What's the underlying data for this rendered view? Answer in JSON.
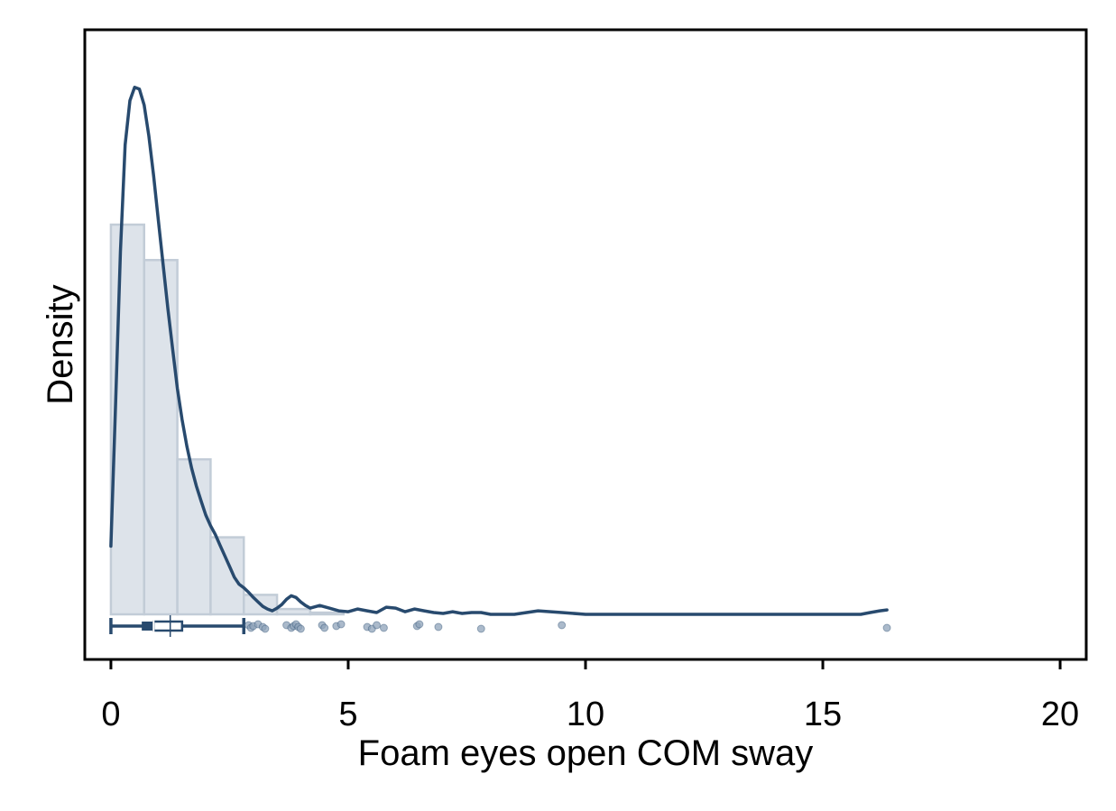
{
  "chart_data": {
    "type": "histogram",
    "title": "",
    "xlabel": "Foam eyes open COM sway",
    "ylabel": "Density",
    "xlim": [
      -0.55,
      20.55
    ],
    "x_ticks": [
      "0",
      "5",
      "10",
      "15",
      "20"
    ],
    "x_tick_values": [
      0,
      5,
      10,
      15,
      20
    ],
    "ylim": [
      0,
      0.66
    ],
    "show_y_tick_labels": false,
    "grid": false,
    "legend": "none",
    "colors": {
      "bar_fill": "#dde3ea",
      "bar_stroke": "#c2ccd7",
      "line": "#284a6e",
      "points": "#8fa3ba",
      "frame": "#000000"
    },
    "histogram": {
      "bin_width": 0.7,
      "bin_starts": [
        0,
        0.7,
        1.4,
        2.1,
        2.8,
        3.5,
        4.2
      ],
      "density": [
        0.44,
        0.4,
        0.175,
        0.087,
        0.022,
        0.006,
        0.002
      ]
    },
    "kde": {
      "x": [
        0,
        0.1,
        0.2,
        0.3,
        0.4,
        0.5,
        0.6,
        0.7,
        0.8,
        0.9,
        1.0,
        1.1,
        1.2,
        1.3,
        1.4,
        1.5,
        1.6,
        1.7,
        1.8,
        1.9,
        2.0,
        2.1,
        2.2,
        2.3,
        2.4,
        2.5,
        2.6,
        2.7,
        2.8,
        2.9,
        3.0,
        3.1,
        3.2,
        3.3,
        3.4,
        3.5,
        3.6,
        3.7,
        3.8,
        3.9,
        4.0,
        4.1,
        4.2,
        4.4,
        4.6,
        4.8,
        5.0,
        5.2,
        5.4,
        5.6,
        5.8,
        6.0,
        6.2,
        6.4,
        6.6,
        6.8,
        7.0,
        7.2,
        7.4,
        7.6,
        7.8,
        8.0,
        8.5,
        9.0,
        9.5,
        10.0,
        11.0,
        12.0,
        13.0,
        14.0,
        15.0,
        15.8,
        16.0,
        16.2,
        16.35
      ],
      "y": [
        0.077,
        0.24,
        0.41,
        0.53,
        0.58,
        0.595,
        0.593,
        0.575,
        0.54,
        0.495,
        0.445,
        0.395,
        0.345,
        0.3,
        0.255,
        0.22,
        0.19,
        0.165,
        0.145,
        0.128,
        0.112,
        0.1,
        0.09,
        0.078,
        0.066,
        0.054,
        0.042,
        0.034,
        0.03,
        0.025,
        0.019,
        0.014,
        0.009,
        0.006,
        0.004,
        0.007,
        0.011,
        0.017,
        0.021,
        0.019,
        0.014,
        0.01,
        0.007,
        0.01,
        0.007,
        0.004,
        0.003,
        0.006,
        0.004,
        0.002,
        0.008,
        0.007,
        0.003,
        0.006,
        0.004,
        0.002,
        0.001,
        0.003,
        0.001,
        0.002,
        0.002,
        0.0,
        0.0,
        0.004,
        0.002,
        0.0,
        0.0,
        0.0,
        0.0,
        0.0,
        0.0,
        0.0,
        0.002,
        0.004,
        0.005
      ]
    },
    "boxplot": {
      "min": 0,
      "q1": 0.65,
      "median": 0.9,
      "mean": 1.25,
      "q3": 1.5,
      "max": 2.8
    },
    "outliers": [
      2.9,
      2.95,
      3.0,
      3.1,
      3.2,
      3.25,
      3.7,
      3.8,
      3.85,
      3.9,
      3.95,
      4.0,
      4.45,
      4.5,
      4.75,
      4.85,
      5.4,
      5.5,
      5.6,
      5.75,
      6.45,
      6.5,
      6.9,
      7.8,
      9.5,
      16.35
    ]
  }
}
